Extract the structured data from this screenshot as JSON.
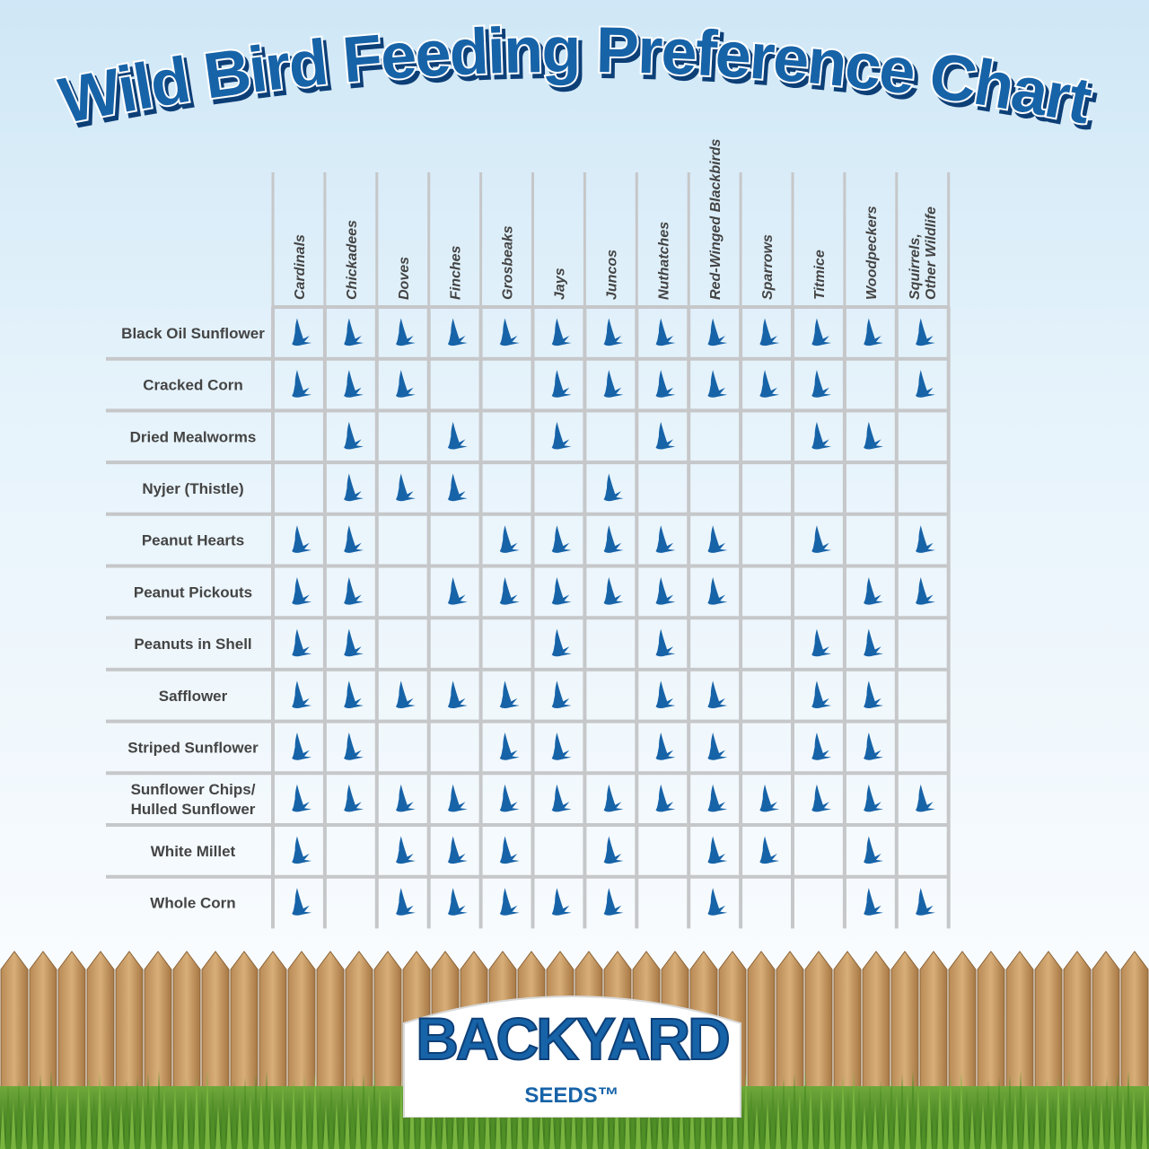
{
  "title": "Wild Bird Feeding Preference Chart",
  "colors": {
    "accent": "#1763a8",
    "grid": "#c6c7c9",
    "label": "#444444"
  },
  "icons": {
    "mark": "bird-icon"
  },
  "brand": {
    "name": "BACKYARD",
    "sub": "SEEDS™"
  },
  "chart_data": {
    "type": "table",
    "title": "Wild Bird Feeding Preference Chart",
    "columns": [
      "Cardinals",
      "Chickadees",
      "Doves",
      "Finches",
      "Grosbeaks",
      "Jays",
      "Juncos",
      "Nuthatches",
      "Red-Winged Blackbirds",
      "Sparrows",
      "Titmice",
      "Woodpeckers",
      "Squirrels, Other Wildlife"
    ],
    "rows": [
      {
        "label": "Black Oil Sunflower",
        "marks": [
          1,
          1,
          1,
          1,
          1,
          1,
          1,
          1,
          1,
          1,
          1,
          1,
          1
        ]
      },
      {
        "label": "Cracked Corn",
        "marks": [
          1,
          1,
          1,
          0,
          0,
          1,
          1,
          1,
          1,
          1,
          1,
          0,
          1
        ]
      },
      {
        "label": "Dried Mealworms",
        "marks": [
          0,
          1,
          0,
          1,
          0,
          1,
          0,
          1,
          0,
          0,
          1,
          1,
          0
        ]
      },
      {
        "label": "Nyjer (Thistle)",
        "marks": [
          0,
          1,
          1,
          1,
          0,
          0,
          1,
          0,
          0,
          0,
          0,
          0,
          0
        ]
      },
      {
        "label": "Peanut Hearts",
        "marks": [
          1,
          1,
          0,
          0,
          1,
          1,
          1,
          1,
          1,
          0,
          1,
          0,
          1
        ]
      },
      {
        "label": "Peanut Pickouts",
        "marks": [
          1,
          1,
          0,
          1,
          1,
          1,
          1,
          1,
          1,
          0,
          0,
          1,
          1
        ]
      },
      {
        "label": "Peanuts in Shell",
        "marks": [
          1,
          1,
          0,
          0,
          0,
          1,
          0,
          1,
          0,
          0,
          1,
          1,
          0
        ]
      },
      {
        "label": "Safflower",
        "marks": [
          1,
          1,
          1,
          1,
          1,
          1,
          0,
          1,
          1,
          0,
          1,
          1,
          0
        ]
      },
      {
        "label": "Striped Sunflower",
        "marks": [
          1,
          1,
          0,
          0,
          1,
          1,
          0,
          1,
          1,
          0,
          1,
          1,
          0
        ]
      },
      {
        "label": "Sunflower Chips/\nHulled Sunflower",
        "marks": [
          1,
          1,
          1,
          1,
          1,
          1,
          1,
          1,
          1,
          1,
          1,
          1,
          1
        ]
      },
      {
        "label": "White Millet",
        "marks": [
          1,
          0,
          1,
          1,
          1,
          0,
          1,
          0,
          1,
          1,
          0,
          1,
          0
        ]
      },
      {
        "label": "Whole Corn",
        "marks": [
          1,
          0,
          1,
          1,
          1,
          1,
          1,
          0,
          1,
          0,
          0,
          1,
          1
        ]
      }
    ]
  }
}
